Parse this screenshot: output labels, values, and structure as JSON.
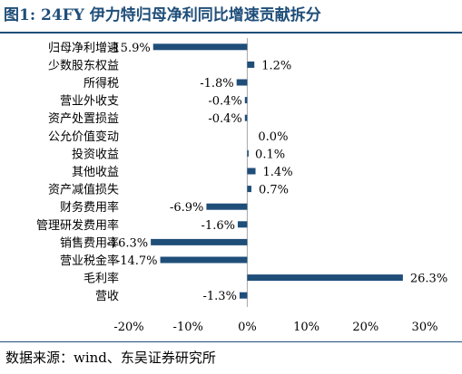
{
  "title": "图1:  24FY 伊力特归母净利同比增速贡献拆分",
  "source": "数据来源：wind、东吴证券研究所",
  "chart_data": {
    "type": "bar",
    "orientation": "horizontal",
    "categories": [
      "归母净利增速",
      "少数股东权益",
      "所得税",
      "营业外收支",
      "资产处置损益",
      "公允价值变动",
      "投资收益",
      "其他收益",
      "资产减值损失",
      "财务费用率",
      "管理研发费用率",
      "销售费用率",
      "营业税金率",
      "毛利率",
      "营收"
    ],
    "values": [
      -15.9,
      1.2,
      -1.8,
      -0.4,
      -0.4,
      0.0,
      0.1,
      1.4,
      0.7,
      -6.9,
      -1.6,
      -16.3,
      -14.7,
      26.3,
      -1.3
    ],
    "value_labels": [
      "-15.9%",
      "1.2%",
      "-1.8%",
      "-0.4%",
      "-0.4%",
      "0.0%",
      "0.1%",
      "1.4%",
      "0.7%",
      "-6.9%",
      "-1.6%",
      "-16.3%",
      "-14.7%",
      "26.3%",
      "-1.3%"
    ],
    "xlim": [
      -20,
      30
    ],
    "xticks": [
      -20,
      -10,
      0,
      10,
      20,
      30
    ],
    "xtick_labels": [
      "-20%",
      "-10%",
      "0%",
      "10%",
      "20%",
      "30%"
    ],
    "bar_color": "#1f4e79",
    "grid": false,
    "legend": "none"
  }
}
